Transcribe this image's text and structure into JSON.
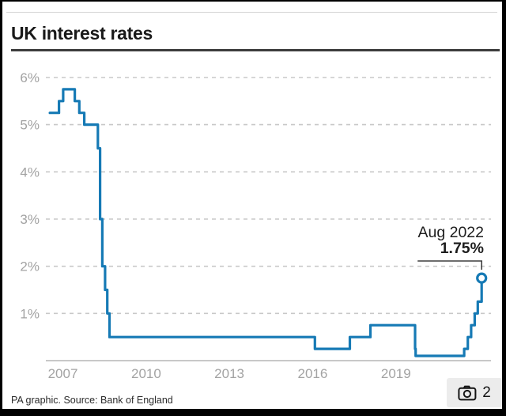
{
  "page": {
    "title": "UK interest rates",
    "attribution": "PA graphic. Source: Bank of England"
  },
  "annotation": {
    "date": "Aug 2022",
    "value": "1.75%"
  },
  "camera_button": {
    "icon": "camera-icon",
    "count": "2"
  },
  "colors": {
    "line": "#167ab5",
    "grid": "#c8c8c8",
    "tick_label": "#a3a3a3",
    "axis_line": "#b5b5b5",
    "pointer": "#3f3f3f",
    "marker_fill": "#ffffff"
  },
  "chart_data": {
    "type": "line",
    "style": "step-after",
    "title": "UK interest rates",
    "xlabel": "",
    "ylabel": "",
    "xlim": [
      2006.9,
      2023.0
    ],
    "ylim": [
      0,
      6.3
    ],
    "grid": "horizontal-dashed",
    "legend": "none",
    "ytick_values": [
      1,
      2,
      3,
      4,
      5,
      6
    ],
    "ytick_labels": [
      "1%",
      "2%",
      "3%",
      "4%",
      "5%",
      "6%"
    ],
    "xtick_values": [
      2007,
      2010,
      2013,
      2016,
      2019
    ],
    "xtick_labels": [
      "2007",
      "2010",
      "2013",
      "2016",
      "2019"
    ],
    "marker_on_last_point": true,
    "series": [
      {
        "name": "UK interest rate",
        "points": [
          [
            2007.03,
            5.25
          ],
          [
            2007.36,
            5.5
          ],
          [
            2007.51,
            5.75
          ],
          [
            2007.93,
            5.5
          ],
          [
            2008.09,
            5.25
          ],
          [
            2008.27,
            5.0
          ],
          [
            2008.76,
            4.5
          ],
          [
            2008.84,
            3.0
          ],
          [
            2008.92,
            2.0
          ],
          [
            2009.02,
            1.5
          ],
          [
            2009.1,
            1.0
          ],
          [
            2009.18,
            0.5
          ],
          [
            2016.58,
            0.25
          ],
          [
            2017.84,
            0.5
          ],
          [
            2018.58,
            0.75
          ],
          [
            2020.19,
            0.25
          ],
          [
            2020.21,
            0.1
          ],
          [
            2021.96,
            0.25
          ],
          [
            2022.09,
            0.5
          ],
          [
            2022.21,
            0.75
          ],
          [
            2022.34,
            1.0
          ],
          [
            2022.45,
            1.25
          ],
          [
            2022.59,
            1.75
          ]
        ]
      }
    ]
  }
}
